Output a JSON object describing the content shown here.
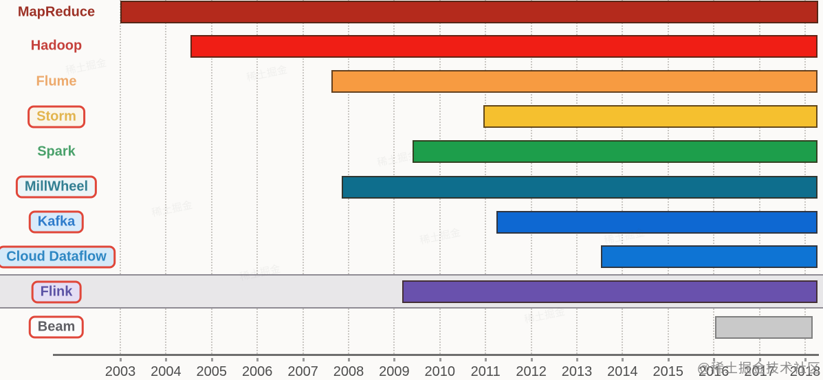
{
  "watermark_corner": "@稀土掘金技术社区",
  "background_watermark": "稀土掘金",
  "colors": {
    "background": "#fbfaf8",
    "axis_line": "#6e6e6e",
    "gridline": "#c9c6c2",
    "tick_label": "#4c4c4c",
    "label_box_border": "#e0473a",
    "flink_band_fill": "#e8e7e9",
    "flink_band_border": "#8f8c94"
  },
  "chart_data": {
    "type": "bar",
    "subtype": "horizontal-timeline-gantt",
    "title": "",
    "xlabel": "",
    "ylabel": "",
    "grid": "vertical-dotted",
    "x_axis": {
      "unit": "year",
      "tick_years": [
        2003,
        2004,
        2005,
        2006,
        2007,
        2008,
        2009,
        2010,
        2011,
        2012,
        2013,
        2014,
        2015,
        2016,
        2017,
        2018
      ],
      "axis_extends_past_last_tick": true
    },
    "rows": [
      {
        "label": "MapReduce",
        "start_year": 2003.0,
        "end_year": null,
        "open_ended": true,
        "bar_color": "#b42a1c",
        "label_color": "#9d3126",
        "boxed": false
      },
      {
        "label": "Hadoop",
        "start_year": 2004.53,
        "end_year": null,
        "open_ended": true,
        "bar_color": "#f01e15",
        "label_color": "#c5413c",
        "boxed": false
      },
      {
        "label": "Flume",
        "start_year": 2007.63,
        "end_year": null,
        "open_ended": true,
        "bar_color": "#f79b41",
        "label_color": "#edaa6d",
        "boxed": false
      },
      {
        "label": "Storm",
        "start_year": 2010.95,
        "end_year": null,
        "open_ended": true,
        "bar_color": "#f5c02f",
        "label_color": "#e2b44e",
        "boxed": true,
        "label_bg": "#faf5ea"
      },
      {
        "label": "Spark",
        "start_year": 2009.4,
        "end_year": null,
        "open_ended": true,
        "bar_color": "#1d9e4b",
        "label_color": "#4aa16b",
        "boxed": false
      },
      {
        "label": "MillWheel",
        "start_year": 2007.85,
        "end_year": null,
        "open_ended": true,
        "bar_color": "#0e6e8d",
        "label_color": "#337f92",
        "boxed": true,
        "label_bg": "#edf5f7"
      },
      {
        "label": "Kafka",
        "start_year": 2011.24,
        "end_year": null,
        "open_ended": true,
        "bar_color": "#0e68d2",
        "label_color": "#2f7ccb",
        "boxed": true,
        "label_bg": "#d8eafa"
      },
      {
        "label": "Cloud Dataflow",
        "start_year": 2013.52,
        "end_year": null,
        "open_ended": true,
        "bar_color": "#0e74d4",
        "label_color": "#2e87c3",
        "boxed": true,
        "label_bg": "#d5e9f8"
      },
      {
        "label": "Flink",
        "start_year": 2009.17,
        "end_year": null,
        "open_ended": true,
        "bar_color": "#6951ad",
        "label_color": "#5c53a5",
        "boxed": true,
        "label_bg": "#e4def4",
        "row_highlighted": true
      },
      {
        "label": "Beam",
        "start_year": 2016.02,
        "end_year": 2018.17,
        "open_ended": false,
        "bar_color": "#c9c9c9",
        "bar_border": "#7f7f7f",
        "label_color": "#606065",
        "boxed": true,
        "label_bg": "#fcfcfc"
      }
    ]
  }
}
